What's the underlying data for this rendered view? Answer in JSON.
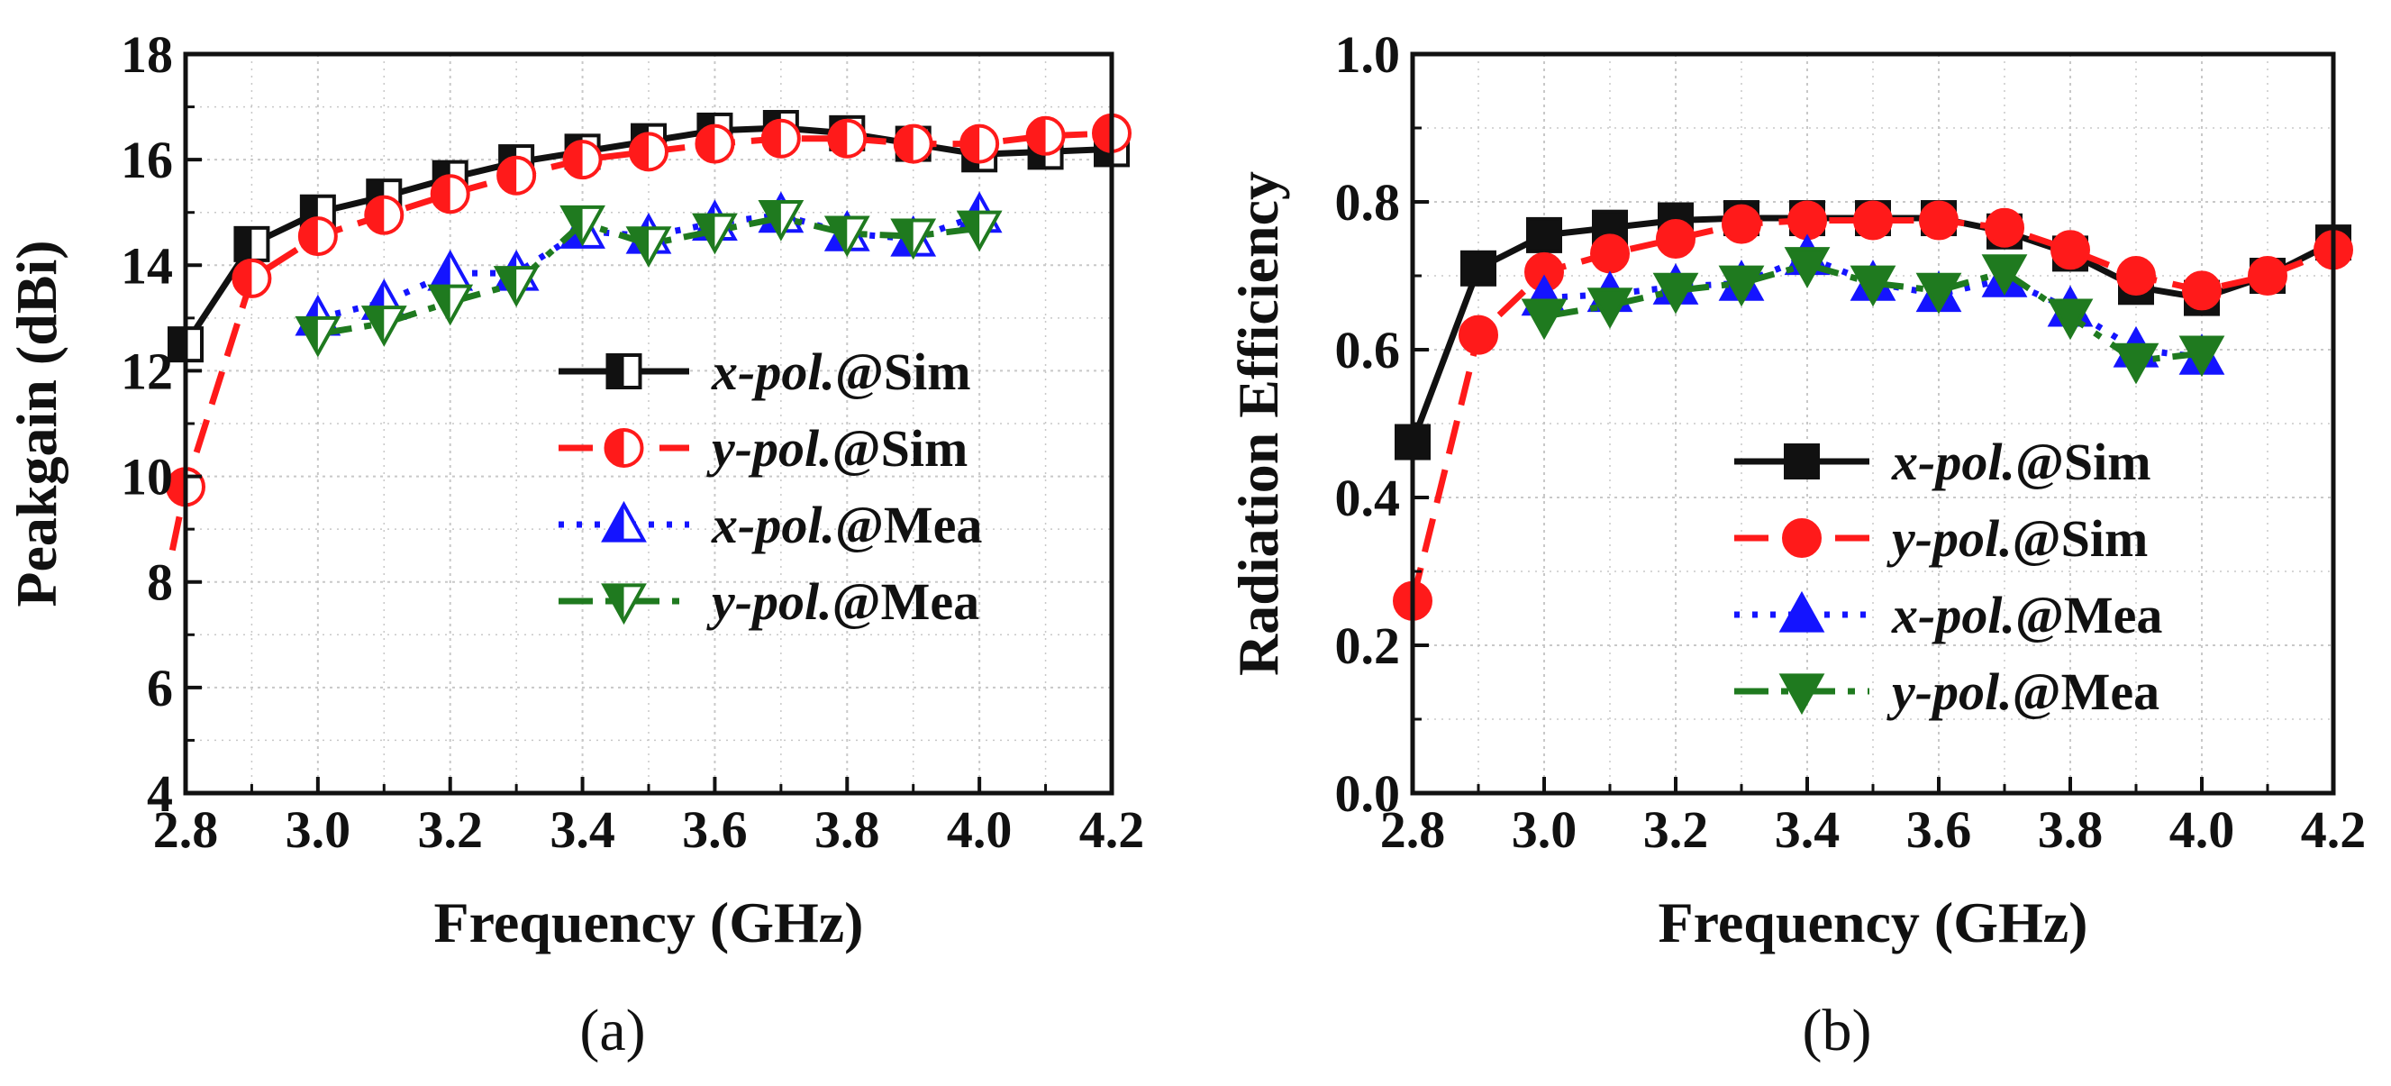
{
  "colors": {
    "black": "#111111",
    "red": "#ff1a1a",
    "blue": "#1414ff",
    "green": "#1f7a1f",
    "grid": "#c8c8c8"
  },
  "chart_data": [
    {
      "type": "line",
      "panel_label": "(a)",
      "xlabel": "Frequency (GHz)",
      "ylabel": "Peakgain (dBi)",
      "xlim": [
        2.8,
        4.2
      ],
      "ylim": [
        4,
        18
      ],
      "xticks": [
        "2.8",
        "3.0",
        "3.2",
        "3.4",
        "3.6",
        "3.8",
        "4.0",
        "4.2"
      ],
      "xtick_values": [
        2.8,
        3.0,
        3.2,
        3.4,
        3.6,
        3.8,
        4.0,
        4.2
      ],
      "yticks": [
        "4",
        "6",
        "8",
        "10",
        "12",
        "14",
        "16",
        "18"
      ],
      "ytick_values": [
        4,
        6,
        8,
        10,
        12,
        14,
        16,
        18
      ],
      "grid": true,
      "legend_position": "center-right",
      "series": [
        {
          "name_ital": "x-pol.",
          "name_rest": "@Sim",
          "color": "#111111",
          "dash": "solid",
          "marker": "half-square",
          "x": [
            2.8,
            2.9,
            3.0,
            3.1,
            3.2,
            3.3,
            3.4,
            3.5,
            3.6,
            3.7,
            3.8,
            3.9,
            4.0,
            4.1,
            4.2
          ],
          "y": [
            12.5,
            14.4,
            15.0,
            15.3,
            15.65,
            15.95,
            16.15,
            16.35,
            16.55,
            16.6,
            16.5,
            16.3,
            16.1,
            16.15,
            16.2
          ]
        },
        {
          "name_ital": "y-pol.",
          "name_rest": "@Sim",
          "color": "#ff1a1a",
          "dash": "dashed",
          "marker": "half-circle",
          "x": [
            2.78,
            2.8,
            2.9,
            3.0,
            3.1,
            3.2,
            3.3,
            3.4,
            3.5,
            3.6,
            3.7,
            3.8,
            3.9,
            4.0,
            4.1,
            4.2
          ],
          "y": [
            8.6,
            9.8,
            13.75,
            14.55,
            14.95,
            15.35,
            15.7,
            16.0,
            16.15,
            16.3,
            16.4,
            16.4,
            16.3,
            16.3,
            16.45,
            16.5
          ]
        },
        {
          "name_ital": "x-pol.",
          "name_rest": "@Mea",
          "color": "#1414ff",
          "dash": "dotted",
          "marker": "half-triangle-up",
          "x": [
            3.0,
            3.1,
            3.2,
            3.3,
            3.4,
            3.5,
            3.6,
            3.7,
            3.8,
            3.9,
            4.0
          ],
          "y": [
            13.0,
            13.3,
            13.85,
            13.85,
            14.65,
            14.55,
            14.8,
            14.95,
            14.6,
            14.5,
            14.95
          ]
        },
        {
          "name_ital": "y-pol.",
          "name_rest": "@Mea",
          "color": "#1f7a1f",
          "dash": "dashdot",
          "marker": "half-triangle-down",
          "x": [
            3.0,
            3.1,
            3.2,
            3.3,
            3.4,
            3.5,
            3.6,
            3.7,
            3.8,
            3.9,
            4.0
          ],
          "y": [
            12.7,
            12.9,
            13.3,
            13.65,
            14.8,
            14.4,
            14.65,
            14.9,
            14.6,
            14.55,
            14.7
          ]
        }
      ]
    },
    {
      "type": "line",
      "panel_label": "(b)",
      "xlabel": "Frequency (GHz)",
      "ylabel": "Radiation Efficiency",
      "xlim": [
        2.8,
        4.2
      ],
      "ylim": [
        0.0,
        1.0
      ],
      "xticks": [
        "2.8",
        "3.0",
        "3.2",
        "3.4",
        "3.6",
        "3.8",
        "4.0",
        "4.2"
      ],
      "xtick_values": [
        2.8,
        3.0,
        3.2,
        3.4,
        3.6,
        3.8,
        4.0,
        4.2
      ],
      "yticks": [
        "0.0",
        "0.2",
        "0.4",
        "0.6",
        "0.8",
        "1.0"
      ],
      "ytick_values": [
        0.0,
        0.2,
        0.4,
        0.6,
        0.8,
        1.0
      ],
      "grid": true,
      "legend_position": "center-right",
      "series": [
        {
          "name_ital": "x-pol.",
          "name_rest": "@Sim",
          "color": "#111111",
          "dash": "solid",
          "marker": "square",
          "x": [
            2.8,
            2.9,
            3.0,
            3.1,
            3.2,
            3.3,
            3.4,
            3.5,
            3.6,
            3.7,
            3.8,
            3.9,
            4.0,
            4.1,
            4.2
          ],
          "y": [
            0.475,
            0.71,
            0.755,
            0.765,
            0.775,
            0.778,
            0.778,
            0.778,
            0.778,
            0.76,
            0.73,
            0.685,
            0.67,
            0.7,
            0.745
          ]
        },
        {
          "name_ital": "y-pol.",
          "name_rest": "@Sim",
          "color": "#ff1a1a",
          "dash": "dashed",
          "marker": "circle",
          "x": [
            2.8,
            2.9,
            3.0,
            3.1,
            3.2,
            3.3,
            3.4,
            3.5,
            3.6,
            3.7,
            3.8,
            3.9,
            4.0,
            4.1,
            4.2
          ],
          "y": [
            0.26,
            0.62,
            0.705,
            0.73,
            0.75,
            0.77,
            0.775,
            0.775,
            0.775,
            0.765,
            0.735,
            0.7,
            0.68,
            0.7,
            0.735
          ]
        },
        {
          "name_ital": "x-pol.",
          "name_rest": "@Mea",
          "color": "#1414ff",
          "dash": "dotted",
          "marker": "triangle-up",
          "x": [
            3.0,
            3.1,
            3.2,
            3.3,
            3.4,
            3.5,
            3.6,
            3.7,
            3.8,
            3.9,
            4.0
          ],
          "y": [
            0.67,
            0.675,
            0.685,
            0.69,
            0.725,
            0.69,
            0.675,
            0.695,
            0.655,
            0.6,
            0.59
          ]
        },
        {
          "name_ital": "y-pol.",
          "name_rest": "@Mea",
          "color": "#1f7a1f",
          "dash": "dashdot",
          "marker": "triangle-down",
          "x": [
            3.0,
            3.1,
            3.2,
            3.3,
            3.4,
            3.5,
            3.6,
            3.7,
            3.8,
            3.9,
            4.0
          ],
          "y": [
            0.645,
            0.66,
            0.68,
            0.69,
            0.715,
            0.69,
            0.68,
            0.705,
            0.645,
            0.585,
            0.595
          ]
        }
      ]
    }
  ]
}
